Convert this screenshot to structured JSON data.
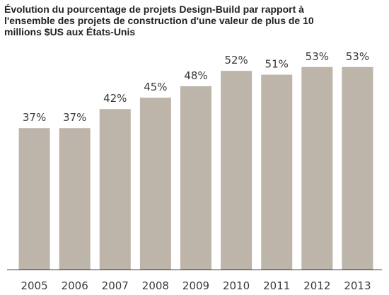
{
  "chart_data": {
    "type": "bar",
    "title_lines": [
      "Évolution du pourcentage de projets Design-Build par rapport à",
      "l'ensemble des projets de construction d'une valeur de plus de 10",
      "millions $US aux États-Unis"
    ],
    "categories": [
      "2005",
      "2006",
      "2007",
      "2008",
      "2009",
      "2010",
      "2011",
      "2012",
      "2013"
    ],
    "values": [
      37,
      37,
      42,
      45,
      48,
      52,
      51,
      53,
      53
    ],
    "data_labels": [
      "37%",
      "37%",
      "42%",
      "45%",
      "48%",
      "52%",
      "51%",
      "53%",
      "53%"
    ],
    "xlabel": "",
    "ylabel": "",
    "ylim": [
      0,
      58
    ],
    "grid": false,
    "legend": "none",
    "bar_color": "#bdb4aa",
    "axis_color": "#333333"
  }
}
